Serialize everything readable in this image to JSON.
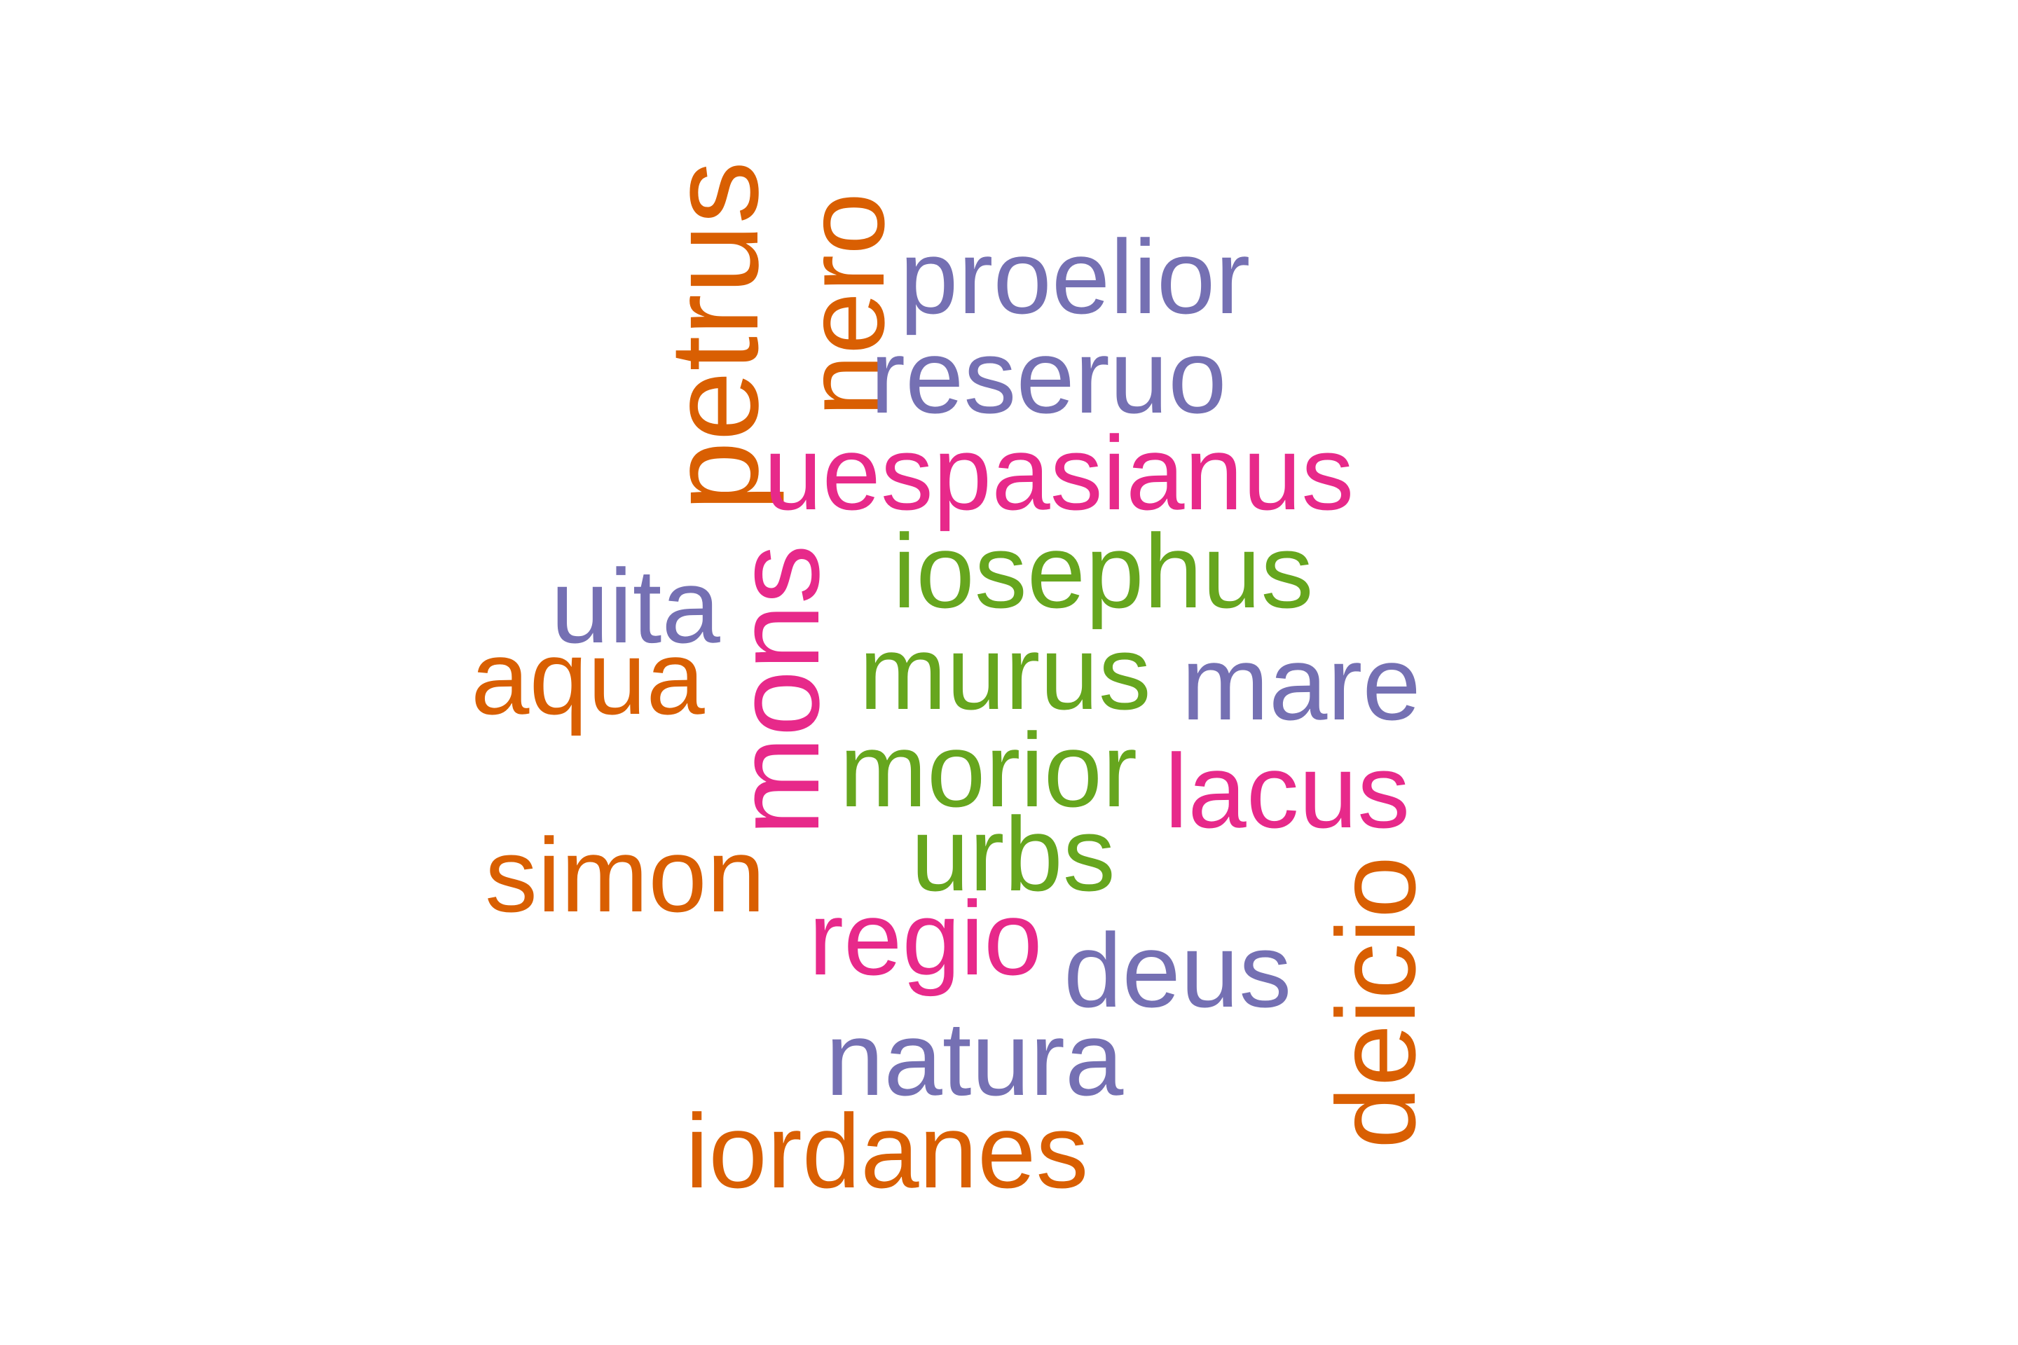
{
  "word_cloud": {
    "palette": {
      "orange": "#d95f02",
      "purple": "#7570b3",
      "pink": "#e7298a",
      "green": "#66a61e"
    },
    "words": {
      "petrus": "petrus",
      "nero": "nero",
      "proelior": "proelior",
      "reseruo": "reseruo",
      "uespasianus": "uespasianus",
      "iosephus": "iosephus",
      "uita": "uita",
      "mons": "mons",
      "aqua": "aqua",
      "murus": "murus",
      "mare": "mare",
      "morior": "morior",
      "lacus": "lacus",
      "urbs": "urbs",
      "simon": "simon",
      "regio": "regio",
      "deus": "deus",
      "deicio": "deicio",
      "natura": "natura",
      "iordanes": "iordanes"
    }
  }
}
